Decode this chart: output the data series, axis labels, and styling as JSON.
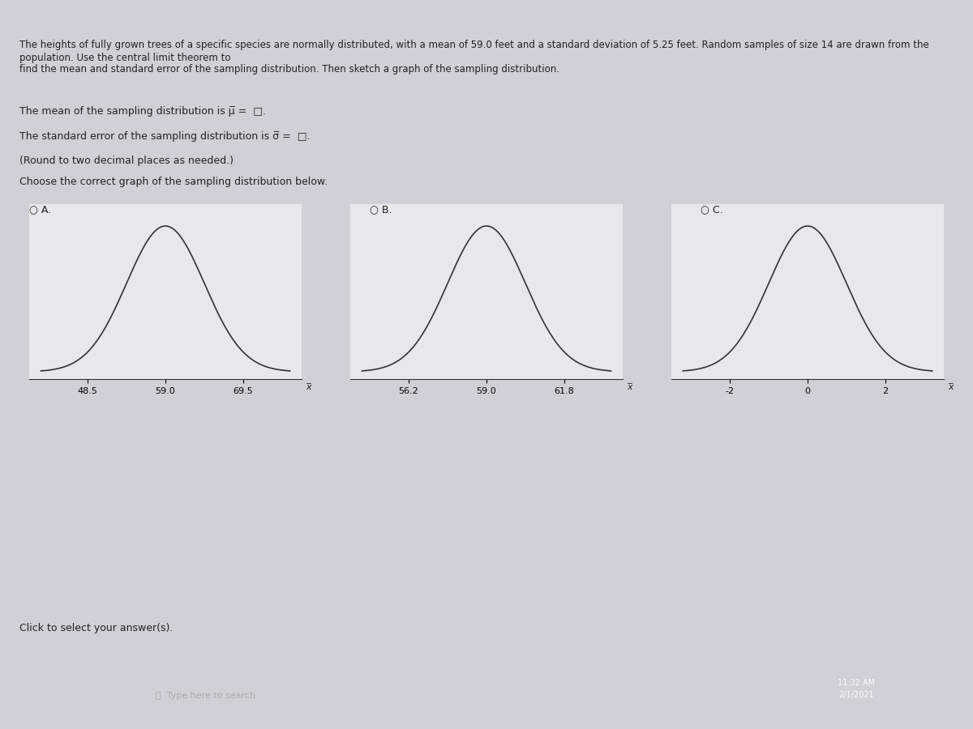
{
  "title_text": "The heights of fully grown trees of a specific species are normally distributed, with a mean of 59.0 feet and a standard deviation of 5.25 feet. Random samples of size 14 are drawn from the population. Use the central limit theorem to\nfind the mean and standard error of the sampling distribution. Then sketch a graph of the sampling distribution.",
  "line1": "The mean of the sampling distribution is μ̅ =",
  "line2": "The standard error of the sampling distribution is σ̅ =",
  "line3": "(Round to two decimal places as needed.)",
  "line4": "Choose the correct graph of the sampling distribution below.",
  "graph_A_label": "A.",
  "graph_B_label": "B.",
  "graph_C_label": "C.",
  "graph_A_ticks": [
    48.5,
    59.0,
    69.5
  ],
  "graph_B_ticks": [
    56.2,
    59.0,
    61.8
  ],
  "graph_C_ticks": [
    -2,
    0,
    2
  ],
  "graph_A_mean": 59.0,
  "graph_A_std": 5.25,
  "graph_B_mean": 59.0,
  "graph_B_std": 1.4,
  "graph_C_mean": 0,
  "graph_C_std": 1,
  "bg_color": "#d0d0d8",
  "panel_color": "#e8e8ec",
  "text_color": "#222222",
  "curve_color": "#333333",
  "radio_color": "#4488cc",
  "xlabel_A": "x̅",
  "xlabel_B": "x̅",
  "xlabel_C": "x̅"
}
